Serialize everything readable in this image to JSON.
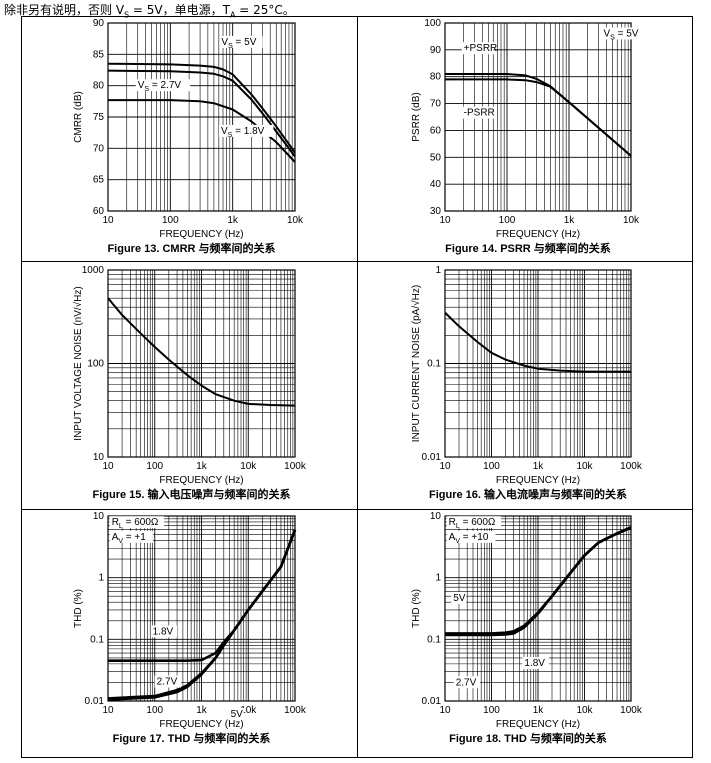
{
  "header": {
    "text_a": "除非另有说明，否则 V",
    "sub_s": "S",
    "text_b": " = 5V，单电源，T",
    "sub_a": "A",
    "text_c": " = 25°C。"
  },
  "chart_data": [
    {
      "type": "line",
      "caption": "Figure 13. CMRR 与频率间的关系",
      "xlabel": "FREQUENCY (Hz)",
      "ylabel": "CMRR (dB)",
      "xscale": "log",
      "xlim": [
        10,
        10000
      ],
      "ylim": [
        60,
        90
      ],
      "xticks": [
        10,
        100,
        1000,
        10000
      ],
      "xtick_labels": [
        "10",
        "100",
        "1k",
        "10k"
      ],
      "yticks": [
        60,
        65,
        70,
        75,
        80,
        85,
        90
      ],
      "ytick_labels": [
        "60",
        "65",
        "70",
        "75",
        "80",
        "85",
        "90"
      ],
      "series": [
        {
          "name": "VS = 5V",
          "x": [
            10,
            100,
            300,
            500,
            700,
            1000,
            2000,
            3000,
            5000,
            10000
          ],
          "y": [
            83.5,
            83.4,
            83.2,
            83.0,
            82.6,
            81.8,
            78.6,
            76.4,
            73.5,
            69.3
          ]
        },
        {
          "name": "VS = 2.7V",
          "x": [
            10,
            100,
            300,
            500,
            700,
            1000,
            2000,
            3000,
            5000,
            10000
          ],
          "y": [
            82.4,
            82.3,
            82.1,
            81.9,
            81.5,
            80.8,
            77.8,
            75.6,
            72.7,
            68.7
          ]
        },
        {
          "name": "VS = 1.8V",
          "x": [
            10,
            100,
            300,
            500,
            1000,
            2000,
            3000,
            5000,
            10000
          ],
          "y": [
            77.7,
            77.7,
            77.5,
            77.2,
            76.2,
            74.3,
            72.8,
            71.0,
            67.8
          ]
        }
      ],
      "annotations": [
        {
          "text": "VS = 5V",
          "x": 660,
          "y": 86.5
        },
        {
          "text": "VS = 2.7V",
          "x": 30,
          "y": 79.6
        },
        {
          "text": "VS = 1.8V",
          "x": 650,
          "y": 72.3
        }
      ]
    },
    {
      "type": "line",
      "caption": "Figure 14. PSRR 与频率间的关系",
      "xlabel": "FREQUENCY (Hz)",
      "ylabel": "PSRR (dB)",
      "xscale": "log",
      "xlim": [
        10,
        10000
      ],
      "ylim": [
        30,
        100
      ],
      "xticks": [
        10,
        100,
        1000,
        10000
      ],
      "xtick_labels": [
        "10",
        "100",
        "1k",
        "10k"
      ],
      "yticks": [
        30,
        40,
        50,
        60,
        70,
        80,
        90,
        100
      ],
      "ytick_labels": [
        "30",
        "40",
        "50",
        "60",
        "70",
        "80",
        "90",
        "100"
      ],
      "series": [
        {
          "name": "+PSRR",
          "x": [
            10,
            100,
            200,
            300,
            500,
            1000,
            10000
          ],
          "y": [
            81,
            81,
            80.5,
            79.2,
            76.5,
            70.5,
            50.5
          ]
        },
        {
          "name": "-PSRR",
          "x": [
            10,
            100,
            200,
            300,
            500,
            1000,
            10000
          ],
          "y": [
            79,
            79,
            78.7,
            78.0,
            76.3,
            70.5,
            50.5
          ]
        }
      ],
      "annotations": [
        {
          "text": "VS = 5V",
          "x": 3600,
          "y": 95
        },
        {
          "text": "+PSRR",
          "x": 20,
          "y": 89.5
        },
        {
          "text": "-PSRR",
          "x": 20,
          "y": 65.5
        }
      ]
    },
    {
      "type": "line",
      "caption": "Figure 15. 输入电压噪声与频率间的关系",
      "xlabel": "FREQUENCY (Hz)",
      "ylabel": "INPUT VOLTAGE NOISE (nV/√Hz)",
      "xscale": "log",
      "yscale": "log",
      "xlim": [
        10,
        100000
      ],
      "ylim": [
        10,
        1000
      ],
      "xticks": [
        10,
        100,
        1000,
        10000,
        100000
      ],
      "xtick_labels": [
        "10",
        "100",
        "1k",
        "10k",
        "100k"
      ],
      "yticks": [
        10,
        100,
        1000
      ],
      "ytick_labels": [
        "10",
        "100",
        "1000"
      ],
      "series": [
        {
          "name": "",
          "x": [
            10,
            20,
            50,
            100,
            200,
            500,
            1000,
            2000,
            5000,
            10000,
            30000,
            100000
          ],
          "y": [
            500,
            330,
            210,
            150,
            110,
            75,
            58,
            47,
            40,
            37,
            36,
            35.5
          ]
        }
      ]
    },
    {
      "type": "line",
      "caption": "Figure 16. 输入电流噪声与频率间的关系",
      "xlabel": "FREQUENCY (Hz)",
      "ylabel": "INPUT CURRENT NOISE (pA/√Hz)",
      "xscale": "log",
      "yscale": "log",
      "xlim": [
        10,
        100000
      ],
      "ylim": [
        0.01,
        1
      ],
      "xticks": [
        10,
        100,
        1000,
        10000,
        100000
      ],
      "xtick_labels": [
        "10",
        "100",
        "1k",
        "10k",
        "100k"
      ],
      "yticks": [
        0.01,
        0.1,
        1
      ],
      "ytick_labels": [
        "0.01",
        "0.1",
        "1"
      ],
      "series": [
        {
          "name": "",
          "x": [
            10,
            20,
            50,
            100,
            200,
            500,
            1000,
            3000,
            10000,
            30000,
            100000
          ],
          "y": [
            0.35,
            0.25,
            0.17,
            0.13,
            0.11,
            0.095,
            0.088,
            0.084,
            0.082,
            0.082,
            0.082
          ]
        }
      ]
    },
    {
      "type": "line",
      "caption": "Figure 17. THD 与频率间的关系",
      "xlabel": "FREQUENCY (Hz)",
      "ylabel": "THD (%)",
      "xscale": "log",
      "yscale": "log",
      "xlim": [
        10,
        100000
      ],
      "ylim": [
        0.01,
        10
      ],
      "xticks": [
        10,
        100,
        1000,
        10000,
        100000
      ],
      "xtick_labels": [
        "10",
        "100",
        "1k",
        "10k",
        "100k"
      ],
      "yticks": [
        0.01,
        0.1,
        1,
        10
      ],
      "ytick_labels": [
        "0.01",
        "0.1",
        "1",
        "10"
      ],
      "series": [
        {
          "name": "1.8V",
          "x": [
            10,
            100,
            500,
            1000,
            2000,
            3000,
            5000,
            10000,
            20000,
            50000,
            100000
          ],
          "y": [
            0.045,
            0.045,
            0.045,
            0.046,
            0.06,
            0.09,
            0.14,
            0.3,
            0.6,
            1.5,
            6
          ]
        },
        {
          "name": "2.7V",
          "x": [
            10,
            100,
            300,
            500,
            1000,
            2000,
            3000,
            5000,
            10000,
            20000,
            50000,
            100000
          ],
          "y": [
            0.011,
            0.012,
            0.015,
            0.018,
            0.028,
            0.05,
            0.08,
            0.14,
            0.3,
            0.6,
            1.5,
            6
          ]
        },
        {
          "name": "5V",
          "x": [
            10,
            100,
            300,
            500,
            1000,
            2000,
            3000,
            5000,
            10000,
            20000,
            50000,
            100000
          ],
          "y": [
            0.0105,
            0.0115,
            0.014,
            0.017,
            0.027,
            0.05,
            0.08,
            0.14,
            0.3,
            0.6,
            1.5,
            6
          ]
        }
      ],
      "annotations": [
        {
          "text": "RL = 600Ω",
          "x": 12,
          "y": 7.1
        },
        {
          "text": "AV = +1",
          "x": 12,
          "y": 4.1
        },
        {
          "text": "1.8V",
          "x": 90,
          "y": 0.12
        },
        {
          "text": "2.7V",
          "x": 110,
          "y": 0.0185
        },
        {
          "text": "5V",
          "x": 4200,
          "y": 0.0055
        }
      ]
    },
    {
      "type": "line",
      "caption": "Figure 18. THD 与频率间的关系",
      "xlabel": "FREQUENCY (Hz)",
      "ylabel": "THD (%)",
      "xscale": "log",
      "yscale": "log",
      "xlim": [
        10,
        100000
      ],
      "ylim": [
        0.01,
        10
      ],
      "xticks": [
        10,
        100,
        1000,
        10000,
        100000
      ],
      "xtick_labels": [
        "10",
        "100",
        "1k",
        "10k",
        "100k"
      ],
      "yticks": [
        0.01,
        0.1,
        1,
        10
      ],
      "ytick_labels": [
        "0.01",
        "0.1",
        "1",
        "10"
      ],
      "series": [
        {
          "name": "5V",
          "x": [
            10,
            100,
            200,
            300,
            500,
            1000,
            2000,
            5000,
            10000,
            20000,
            50000,
            100000
          ],
          "y": [
            0.12,
            0.12,
            0.123,
            0.13,
            0.16,
            0.27,
            0.5,
            1.2,
            2.3,
            3.7,
            5.2,
            6.5
          ]
        },
        {
          "name": "2.7V",
          "x": [
            10,
            100,
            200,
            300,
            500,
            1000,
            2000,
            5000,
            10000,
            20000,
            50000,
            100000
          ],
          "y": [
            0.125,
            0.125,
            0.128,
            0.135,
            0.165,
            0.27,
            0.5,
            1.2,
            2.3,
            3.7,
            5.2,
            6.5
          ]
        },
        {
          "name": "1.8V",
          "x": [
            10,
            100,
            200,
            300,
            500,
            1000,
            2000,
            5000,
            10000,
            20000,
            50000,
            100000
          ],
          "y": [
            0.118,
            0.118,
            0.12,
            0.125,
            0.155,
            0.26,
            0.5,
            1.2,
            2.3,
            3.7,
            5.2,
            6.5
          ]
        }
      ],
      "annotations": [
        {
          "text": "RL = 600Ω",
          "x": 12,
          "y": 7.1
        },
        {
          "text": "AV = +10",
          "x": 12,
          "y": 4.1
        },
        {
          "text": "5V",
          "x": 15,
          "y": 0.42
        },
        {
          "text": "2.7V",
          "x": 17,
          "y": 0.018
        },
        {
          "text": "1.8V",
          "x": 510,
          "y": 0.037
        }
      ]
    }
  ]
}
